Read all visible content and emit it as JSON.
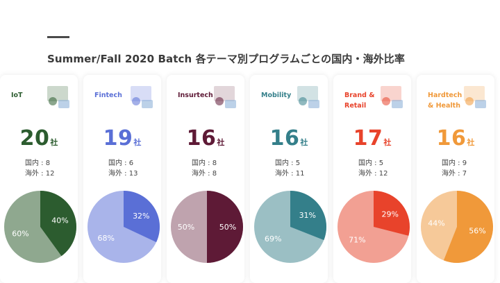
{
  "page": {
    "title": "Summer/Fall 2020 Batch 各テーマ別プログラムごとの国内・海外比率",
    "unit": "社",
    "domestic_label": "国内",
    "overseas_label": "海外"
  },
  "chart_data": [
    {
      "type": "pie",
      "title": "IoT",
      "count": "20",
      "domestic": "8",
      "overseas": "12",
      "slices": [
        {
          "label": "国内",
          "value": 40,
          "text": "40%"
        },
        {
          "label": "海外",
          "value": 60,
          "text": "60%"
        }
      ],
      "colors": {
        "primary": "#2c5c2f",
        "light": "#8fa88f"
      }
    },
    {
      "type": "pie",
      "title": "Fintech",
      "count": "19",
      "domestic": "6",
      "overseas": "13",
      "slices": [
        {
          "label": "国内",
          "value": 32,
          "text": "32%"
        },
        {
          "label": "海外",
          "value": 68,
          "text": "68%"
        }
      ],
      "colors": {
        "primary": "#5a6fd6",
        "light": "#a9b4ea"
      }
    },
    {
      "type": "pie",
      "title": "Insurtech",
      "count": "16",
      "domestic": "8",
      "overseas": "8",
      "slices": [
        {
          "label": "国内",
          "value": 50,
          "text": "50%"
        },
        {
          "label": "海外",
          "value": 50,
          "text": "50%"
        }
      ],
      "colors": {
        "primary": "#5e1a36",
        "light": "#bfa3ae"
      }
    },
    {
      "type": "pie",
      "title": "Mobility",
      "count": "16",
      "domestic": "5",
      "overseas": "11",
      "slices": [
        {
          "label": "国内",
          "value": 31,
          "text": "31%"
        },
        {
          "label": "海外",
          "value": 69,
          "text": "69%"
        }
      ],
      "colors": {
        "primary": "#347f8a",
        "light": "#9bbfc4"
      }
    },
    {
      "type": "pie",
      "title": "Brand &\nRetail",
      "count": "17",
      "domestic": "5",
      "overseas": "12",
      "slices": [
        {
          "label": "国内",
          "value": 29,
          "text": "29%"
        },
        {
          "label": "海外",
          "value": 71,
          "text": "71%"
        }
      ],
      "colors": {
        "primary": "#e8432b",
        "light": "#f2a093"
      }
    },
    {
      "type": "pie",
      "title": "Hardtech\n& Health",
      "count": "16",
      "domestic": "9",
      "overseas": "7",
      "slices": [
        {
          "label": "国内",
          "value": 56,
          "text": "56%"
        },
        {
          "label": "海外",
          "value": 44,
          "text": "44%"
        }
      ],
      "colors": {
        "primary": "#f0993a",
        "light": "#f6c999"
      }
    }
  ]
}
